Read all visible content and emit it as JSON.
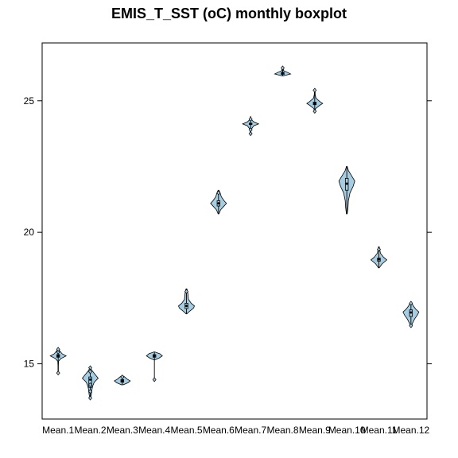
{
  "chart_data": {
    "type": "violin-boxplot",
    "title": "EMIS_T_SST (oC) monthly boxplot",
    "xlabel": "",
    "ylabel": "",
    "ylim": [
      12.9,
      27.2
    ],
    "y_ticks": [
      15,
      20,
      25
    ],
    "y_tick_labels": [
      "15",
      "20",
      "25"
    ],
    "categories": [
      "Mean.1",
      "Mean.2",
      "Mean.3",
      "Mean.4",
      "Mean.5",
      "Mean.6",
      "Mean.7",
      "Mean.8",
      "Mean.9",
      "Mean.10",
      "Mean.11",
      "Mean.12"
    ],
    "fill_color": "#a6cee3",
    "line_color": "#000000",
    "series": [
      {
        "min": 14.65,
        "q1": 15.25,
        "median": 15.3,
        "q3": 15.35,
        "max": 15.55,
        "outliers": [
          14.65,
          15.45,
          15.55
        ],
        "density": [
          [
            14.65,
            0.02
          ],
          [
            14.9,
            0.02
          ],
          [
            15.1,
            0.05
          ],
          [
            15.2,
            0.35
          ],
          [
            15.3,
            1.0
          ],
          [
            15.38,
            0.5
          ],
          [
            15.45,
            0.3
          ],
          [
            15.55,
            0.05
          ]
        ]
      },
      {
        "min": 13.7,
        "q1": 14.1,
        "median": 14.4,
        "q3": 14.5,
        "max": 14.85,
        "outliers": [
          13.7,
          13.95,
          14.2,
          14.7,
          14.85
        ],
        "density": [
          [
            13.7,
            0.05
          ],
          [
            13.85,
            0.15
          ],
          [
            14.0,
            0.2
          ],
          [
            14.15,
            0.3
          ],
          [
            14.3,
            0.5
          ],
          [
            14.45,
            1.0
          ],
          [
            14.6,
            0.6
          ],
          [
            14.75,
            0.2
          ],
          [
            14.85,
            0.05
          ]
        ]
      },
      {
        "min": 14.2,
        "q1": 14.3,
        "median": 14.35,
        "q3": 14.4,
        "max": 14.55,
        "outliers": [
          14.5
        ],
        "density": [
          [
            14.2,
            0.1
          ],
          [
            14.28,
            0.7
          ],
          [
            14.35,
            1.0
          ],
          [
            14.42,
            0.6
          ],
          [
            14.5,
            0.3
          ],
          [
            14.55,
            0.05
          ]
        ]
      },
      {
        "min": 14.4,
        "q1": 15.25,
        "median": 15.3,
        "q3": 15.35,
        "max": 15.45,
        "outliers": [
          14.4
        ],
        "density": [
          [
            15.15,
            0.05
          ],
          [
            15.22,
            0.6
          ],
          [
            15.3,
            1.0
          ],
          [
            15.38,
            0.7
          ],
          [
            15.45,
            0.05
          ]
        ]
      },
      {
        "min": 16.9,
        "q1": 17.1,
        "median": 17.2,
        "q3": 17.3,
        "max": 17.85,
        "outliers": [
          17.75
        ],
        "density": [
          [
            16.9,
            0.05
          ],
          [
            17.0,
            0.4
          ],
          [
            17.12,
            0.9
          ],
          [
            17.2,
            1.0
          ],
          [
            17.3,
            0.6
          ],
          [
            17.45,
            0.25
          ],
          [
            17.6,
            0.2
          ],
          [
            17.75,
            0.15
          ],
          [
            17.85,
            0.05
          ]
        ]
      },
      {
        "min": 20.7,
        "q1": 21.0,
        "median": 21.1,
        "q3": 21.2,
        "max": 21.6,
        "outliers": [
          21.5
        ],
        "density": [
          [
            20.7,
            0.05
          ],
          [
            20.85,
            0.25
          ],
          [
            21.0,
            0.7
          ],
          [
            21.1,
            1.0
          ],
          [
            21.2,
            0.7
          ],
          [
            21.35,
            0.35
          ],
          [
            21.5,
            0.2
          ],
          [
            21.6,
            0.05
          ]
        ]
      },
      {
        "min": 23.7,
        "q1": 24.1,
        "median": 24.12,
        "q3": 24.15,
        "max": 24.4,
        "outliers": [
          23.75,
          23.9,
          24.3
        ],
        "density": [
          [
            23.7,
            0.03
          ],
          [
            23.9,
            0.05
          ],
          [
            24.05,
            0.4
          ],
          [
            24.12,
            1.0
          ],
          [
            24.2,
            0.4
          ],
          [
            24.3,
            0.05
          ],
          [
            24.4,
            0.02
          ]
        ]
      },
      {
        "min": 25.95,
        "q1": 26.0,
        "median": 26.05,
        "q3": 26.08,
        "max": 26.3,
        "outliers": [
          26.25
        ],
        "density": [
          [
            25.95,
            0.1
          ],
          [
            26.02,
            1.0
          ],
          [
            26.08,
            0.6
          ],
          [
            26.15,
            0.1
          ],
          [
            26.25,
            0.1
          ],
          [
            26.3,
            0.03
          ]
        ]
      },
      {
        "min": 24.55,
        "q1": 24.85,
        "median": 24.9,
        "q3": 24.95,
        "max": 25.45,
        "outliers": [
          24.6,
          25.4
        ],
        "density": [
          [
            24.55,
            0.05
          ],
          [
            24.7,
            0.1
          ],
          [
            24.82,
            0.6
          ],
          [
            24.9,
            1.0
          ],
          [
            24.98,
            0.6
          ],
          [
            25.1,
            0.15
          ],
          [
            25.25,
            0.05
          ],
          [
            25.45,
            0.05
          ]
        ]
      },
      {
        "min": 20.7,
        "q1": 21.6,
        "median": 21.85,
        "q3": 22.05,
        "max": 22.5,
        "outliers": [],
        "density": [
          [
            20.7,
            0.05
          ],
          [
            20.95,
            0.15
          ],
          [
            21.2,
            0.2
          ],
          [
            21.5,
            0.4
          ],
          [
            21.75,
            0.8
          ],
          [
            21.95,
            1.0
          ],
          [
            22.15,
            0.6
          ],
          [
            22.35,
            0.2
          ],
          [
            22.5,
            0.05
          ]
        ]
      },
      {
        "min": 18.65,
        "q1": 18.9,
        "median": 18.97,
        "q3": 19.02,
        "max": 19.45,
        "outliers": [
          19.35
        ],
        "density": [
          [
            18.65,
            0.05
          ],
          [
            18.8,
            0.4
          ],
          [
            18.95,
            1.0
          ],
          [
            19.05,
            0.6
          ],
          [
            19.2,
            0.2
          ],
          [
            19.35,
            0.1
          ],
          [
            19.45,
            0.05
          ]
        ]
      },
      {
        "min": 16.4,
        "q1": 16.8,
        "median": 16.95,
        "q3": 17.05,
        "max": 17.35,
        "outliers": [
          16.45,
          17.3
        ],
        "density": [
          [
            16.4,
            0.05
          ],
          [
            16.55,
            0.2
          ],
          [
            16.7,
            0.45
          ],
          [
            16.85,
            0.8
          ],
          [
            16.97,
            1.0
          ],
          [
            17.08,
            0.6
          ],
          [
            17.2,
            0.3
          ],
          [
            17.35,
            0.05
          ]
        ]
      }
    ]
  }
}
